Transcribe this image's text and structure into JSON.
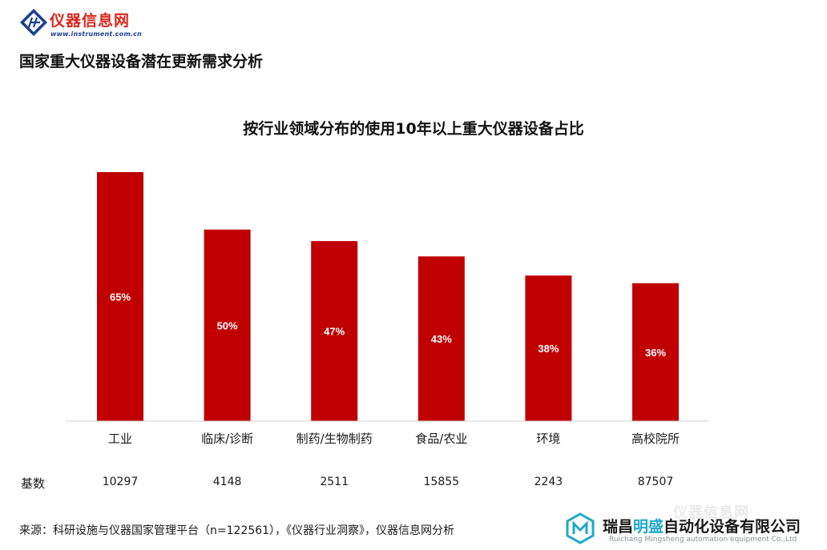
{
  "header": {
    "logo_name": "仪器信息网",
    "logo_url": "www.instrument.com.cn",
    "page_title": "国家重大仪器设备潜在更新需求分析"
  },
  "chart_data": {
    "type": "bar",
    "title": "按行业领域分布的使用10年以上重大仪器设备占比",
    "categories": [
      "工业",
      "临床/诊断",
      "制药/生物制药",
      "食品/农业",
      "环境",
      "高校院所"
    ],
    "values": [
      65,
      50,
      47,
      43,
      38,
      36
    ],
    "value_labels": [
      "65%",
      "50%",
      "47%",
      "43%",
      "38%",
      "36%"
    ],
    "unit": "%",
    "ylim": [
      0,
      65
    ],
    "bar_color": "#c00000",
    "grid": false,
    "legend": "none"
  },
  "base_row": {
    "label": "基数",
    "values": [
      "10297",
      "4148",
      "2511",
      "15855",
      "2243",
      "87507"
    ]
  },
  "footer": {
    "source": "来源：科研设施与仪器国家管理平台（n=122561），《仪器行业洞察》，仪器信息网分析"
  },
  "watermark": {
    "ghost": "仪器信息网",
    "name_a": "瑞昌",
    "name_b": "明盛",
    "name_c": "自动化设备有限公司",
    "name_en": "Ruichang Mingsheng automation equipment Co.,Ltd"
  }
}
